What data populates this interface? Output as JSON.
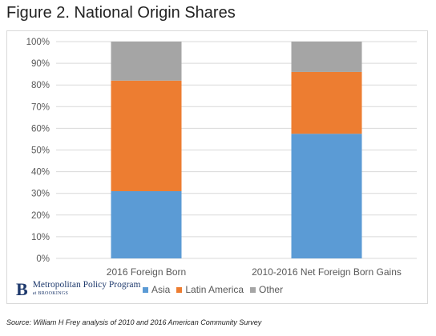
{
  "figure": {
    "title": "Figure 2. National Origin Shares",
    "source": "Source: William H Frey analysis of 2010 and 2016 American Community Survey"
  },
  "brand": {
    "mark": "B",
    "name": "Metropolitan Policy Program",
    "sub": "at BROOKINGS"
  },
  "chart_data": {
    "type": "bar",
    "stacked": true,
    "categories": [
      "2016 Foreign Born",
      "2010-2016 Net Foreign Born Gains"
    ],
    "series": [
      {
        "name": "Asia",
        "values": [
          31,
          57.5
        ],
        "color": "#5b9bd5"
      },
      {
        "name": "Latin America",
        "values": [
          51,
          28.5
        ],
        "color": "#ed7d31"
      },
      {
        "name": "Other",
        "values": [
          18,
          14
        ],
        "color": "#a5a5a5"
      }
    ],
    "ylim": [
      0,
      100
    ],
    "y_ticks": [
      "0%",
      "10%",
      "20%",
      "30%",
      "40%",
      "50%",
      "60%",
      "70%",
      "80%",
      "90%",
      "100%"
    ],
    "grid": true,
    "legend": "bottom"
  }
}
